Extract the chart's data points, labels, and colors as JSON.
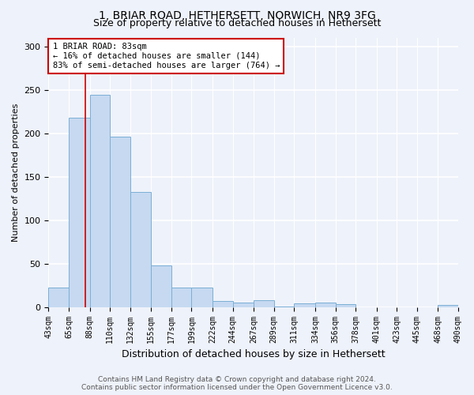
{
  "title1": "1, BRIAR ROAD, HETHERSETT, NORWICH, NR9 3FG",
  "title2": "Size of property relative to detached houses in Hethersett",
  "xlabel": "Distribution of detached houses by size in Hethersett",
  "ylabel": "Number of detached properties",
  "bin_edges": [
    43,
    65,
    88,
    110,
    132,
    155,
    177,
    199,
    222,
    244,
    267,
    289,
    311,
    334,
    356,
    378,
    401,
    423,
    445,
    468,
    490
  ],
  "bar_heights": [
    22,
    218,
    244,
    196,
    132,
    48,
    22,
    22,
    7,
    5,
    8,
    1,
    4,
    5,
    3,
    0,
    0,
    0,
    0,
    2
  ],
  "bar_facecolor": "#c6d9f1",
  "bar_edgecolor": "#7bafd4",
  "property_line_x": 83,
  "property_line_color": "#cc0000",
  "annotation_text": "1 BRIAR ROAD: 83sqm\n← 16% of detached houses are smaller (144)\n83% of semi-detached houses are larger (764) →",
  "annotation_box_color": "white",
  "annotation_box_edgecolor": "#cc0000",
  "ylim": [
    0,
    310
  ],
  "yticks": [
    0,
    50,
    100,
    150,
    200,
    250,
    300
  ],
  "footer1": "Contains HM Land Registry data © Crown copyright and database right 2024.",
  "footer2": "Contains public sector information licensed under the Open Government Licence v3.0.",
  "background_color": "#eef2fa",
  "grid_color": "white",
  "title1_fontsize": 10,
  "title2_fontsize": 9,
  "xlabel_fontsize": 9,
  "ylabel_fontsize": 8,
  "tick_fontsize": 7,
  "footer_fontsize": 6.5,
  "annotation_fontsize": 7.5
}
